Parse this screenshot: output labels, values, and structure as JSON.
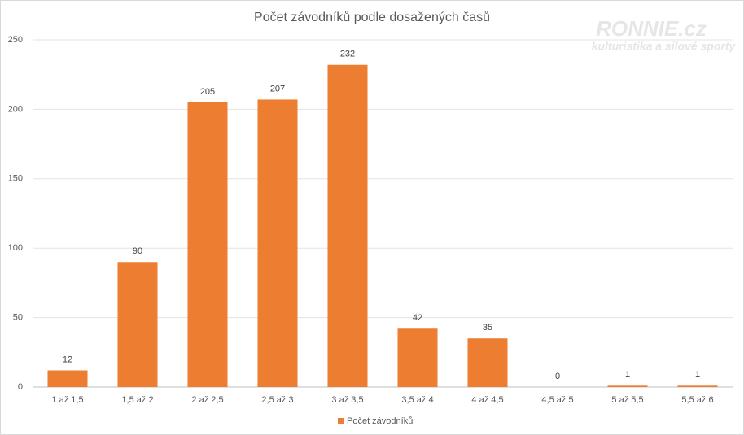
{
  "chart_data": {
    "type": "bar",
    "title": "Počet závodníků podle dosažených časů",
    "annotations": [
      "RONNIE.cz",
      "kulturistika a silové sporty"
    ],
    "categories": [
      "1 až 1,5",
      "1,5 až 2",
      "2 až 2,5",
      "2,5 až 3",
      "3 až 3,5",
      "3,5 až 4",
      "4 až 4,5",
      "4,5 až 5",
      "5 až 5,5",
      "5,5 až 6"
    ],
    "series": [
      {
        "name": "Počet závodníků",
        "color": "#ed7d31",
        "values": [
          12,
          90,
          205,
          207,
          232,
          42,
          35,
          0,
          1,
          1
        ]
      }
    ],
    "ylim": [
      0,
      250
    ],
    "yticks": [
      0,
      50,
      100,
      150,
      200,
      250
    ],
    "grid": true,
    "legend": "bottom",
    "data_labels": true
  }
}
